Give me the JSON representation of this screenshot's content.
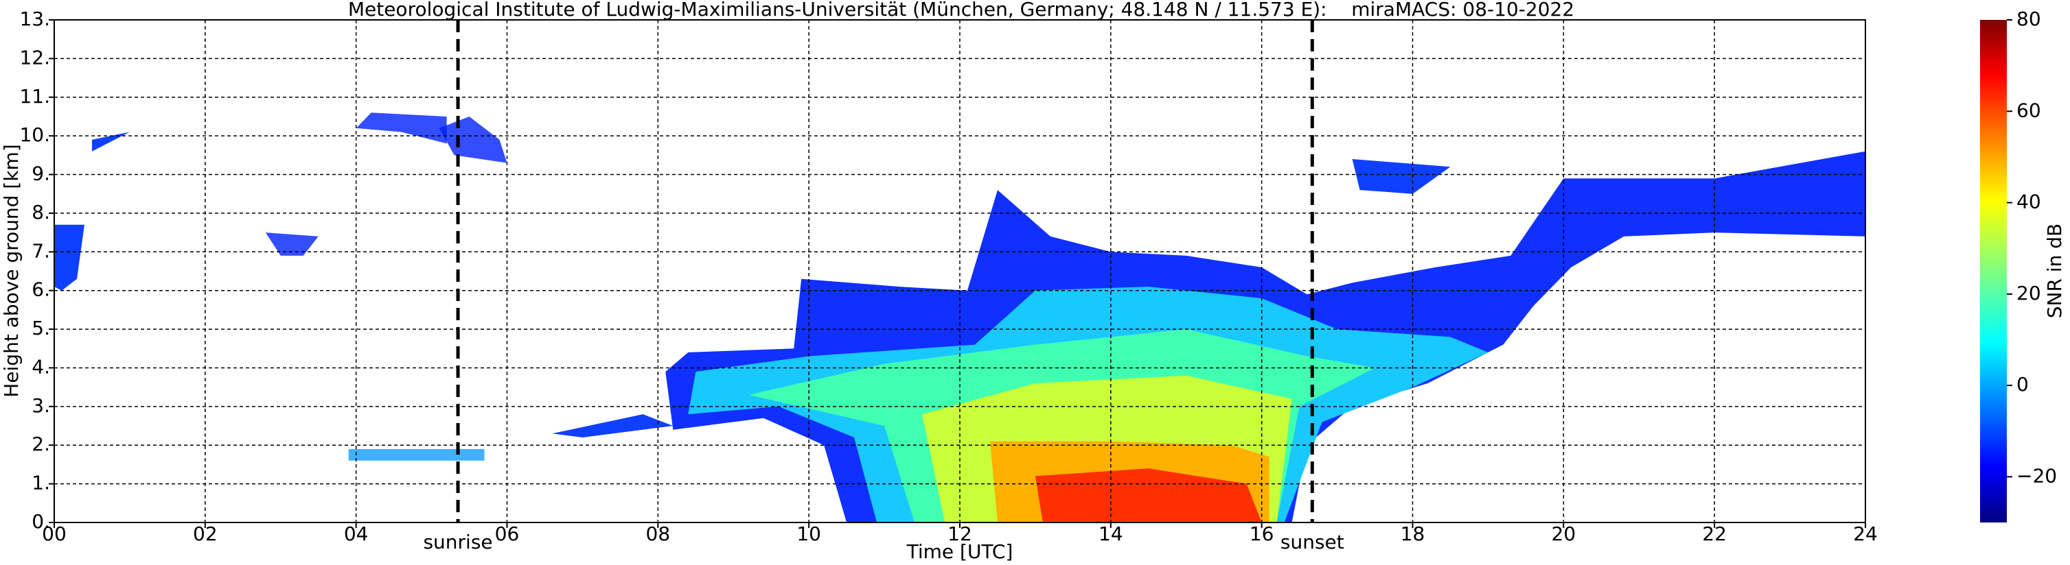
{
  "chart_data": {
    "type": "heatmap",
    "title": "Meteorological Institute of Ludwig-Maximilians-Universität (München, Germany; 48.148 N / 11.573 E):    miraMACS: 08-10-2022",
    "xlabel": "Time [UTC]",
    "ylabel": "Height above ground [km]",
    "xlim": [
      0,
      24
    ],
    "xticks": [
      {
        "value": 0,
        "label": "00"
      },
      {
        "value": 2,
        "label": "02"
      },
      {
        "value": 4,
        "label": "04"
      },
      {
        "value": 6,
        "label": "06"
      },
      {
        "value": 8,
        "label": "08"
      },
      10,
      12,
      14,
      16,
      18,
      20,
      22,
      24
    ],
    "ylim": [
      0,
      13
    ],
    "yticks": [
      {
        "value": 0,
        "label": "0."
      },
      {
        "value": 1,
        "label": "1."
      },
      {
        "value": 2,
        "label": "2."
      },
      {
        "value": 3,
        "label": "3."
      },
      {
        "value": 4,
        "label": "4."
      },
      {
        "value": 5,
        "label": "5."
      },
      {
        "value": 6,
        "label": "6."
      },
      {
        "value": 7,
        "label": "7."
      },
      {
        "value": 8,
        "label": "8."
      },
      {
        "value": 9,
        "label": "9."
      },
      {
        "value": 10,
        "label": "10."
      },
      {
        "value": 11,
        "label": "11."
      },
      {
        "value": 12,
        "label": "12."
      },
      {
        "value": 13,
        "label": "13."
      }
    ],
    "grid": true,
    "colorbar": {
      "label": "SNR in dB",
      "lim": [
        -30,
        80
      ],
      "ticks": [
        {
          "value": -20,
          "label": "−20"
        },
        0,
        20,
        40,
        60,
        80
      ],
      "colormap": "jet"
    },
    "annotations": [
      {
        "text": "sunrise",
        "x": 5.35
      },
      {
        "text": "sunset",
        "x": 16.67
      }
    ]
  }
}
